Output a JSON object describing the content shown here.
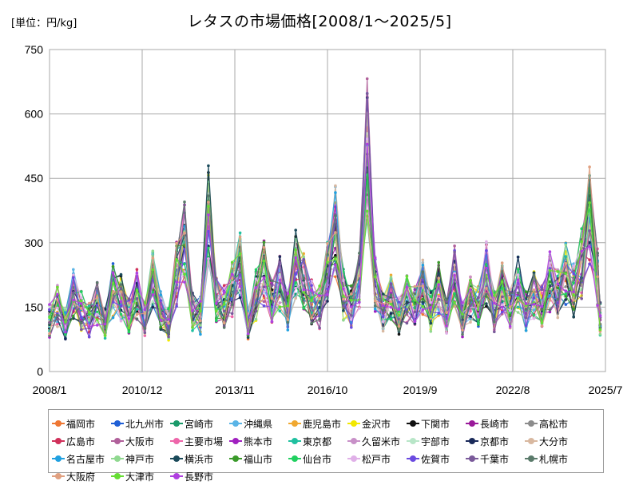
{
  "header": {
    "unit_label": "[単位：円/kg]",
    "title": "レタスの市場価格[2008/1～2025/5]"
  },
  "chart_data": {
    "type": "line",
    "title": "レタスの市場価格[2008/1～2025/5]",
    "unit": "[単位：円/kg]",
    "x_ticks": [
      "2008/1",
      "2010/12",
      "2013/11",
      "2016/10",
      "2019/9",
      "2022/8",
      "2025/7"
    ],
    "y_ticks": [
      0,
      150,
      300,
      450,
      600,
      750
    ],
    "ylim": [
      0,
      750
    ],
    "xlim": [
      "2008/1",
      "2025/7"
    ],
    "grid": true,
    "legend_position": "bottom",
    "reference_series": [
      {
        "x": "2008/1",
        "y": 120
      },
      {
        "x": "2008/4",
        "y": 150
      },
      {
        "x": "2008/7",
        "y": 110
      },
      {
        "x": "2008/10",
        "y": 180
      },
      {
        "x": "2009/1",
        "y": 140
      },
      {
        "x": "2009/4",
        "y": 120
      },
      {
        "x": "2009/7",
        "y": 160
      },
      {
        "x": "2009/10",
        "y": 110
      },
      {
        "x": "2010/1",
        "y": 190
      },
      {
        "x": "2010/4",
        "y": 170
      },
      {
        "x": "2010/7",
        "y": 130
      },
      {
        "x": "2010/10",
        "y": 180
      },
      {
        "x": "2011/1",
        "y": 120
      },
      {
        "x": "2011/4",
        "y": 220
      },
      {
        "x": "2011/7",
        "y": 140
      },
      {
        "x": "2011/10",
        "y": 110
      },
      {
        "x": "2012/1",
        "y": 230
      },
      {
        "x": "2012/4",
        "y": 300
      },
      {
        "x": "2012/7",
        "y": 140
      },
      {
        "x": "2012/10",
        "y": 130
      },
      {
        "x": "2013/1",
        "y": 360
      },
      {
        "x": "2013/4",
        "y": 170
      },
      {
        "x": "2013/7",
        "y": 150
      },
      {
        "x": "2013/10",
        "y": 190
      },
      {
        "x": "2014/1",
        "y": 250
      },
      {
        "x": "2014/4",
        "y": 110
      },
      {
        "x": "2014/7",
        "y": 180
      },
      {
        "x": "2014/10",
        "y": 230
      },
      {
        "x": "2015/1",
        "y": 160
      },
      {
        "x": "2015/4",
        "y": 210
      },
      {
        "x": "2015/7",
        "y": 140
      },
      {
        "x": "2015/10",
        "y": 250
      },
      {
        "x": "2016/1",
        "y": 210
      },
      {
        "x": "2016/4",
        "y": 160
      },
      {
        "x": "2016/7",
        "y": 150
      },
      {
        "x": "2016/10",
        "y": 230
      },
      {
        "x": "2017/1",
        "y": 330
      },
      {
        "x": "2017/4",
        "y": 180
      },
      {
        "x": "2017/7",
        "y": 150
      },
      {
        "x": "2017/10",
        "y": 210
      },
      {
        "x": "2018/1",
        "y": 520
      },
      {
        "x": "2018/4",
        "y": 200
      },
      {
        "x": "2018/7",
        "y": 140
      },
      {
        "x": "2018/10",
        "y": 170
      },
      {
        "x": "2019/1",
        "y": 130
      },
      {
        "x": "2019/4",
        "y": 170
      },
      {
        "x": "2019/7",
        "y": 150
      },
      {
        "x": "2019/10",
        "y": 200
      },
      {
        "x": "2020/1",
        "y": 140
      },
      {
        "x": "2020/4",
        "y": 190
      },
      {
        "x": "2020/7",
        "y": 130
      },
      {
        "x": "2020/10",
        "y": 220
      },
      {
        "x": "2021/1",
        "y": 120
      },
      {
        "x": "2021/4",
        "y": 170
      },
      {
        "x": "2021/7",
        "y": 150
      },
      {
        "x": "2021/10",
        "y": 230
      },
      {
        "x": "2022/1",
        "y": 140
      },
      {
        "x": "2022/4",
        "y": 190
      },
      {
        "x": "2022/7",
        "y": 150
      },
      {
        "x": "2022/10",
        "y": 200
      },
      {
        "x": "2023/1",
        "y": 140
      },
      {
        "x": "2023/4",
        "y": 180
      },
      {
        "x": "2023/7",
        "y": 150
      },
      {
        "x": "2023/10",
        "y": 210
      },
      {
        "x": "2024/1",
        "y": 180
      },
      {
        "x": "2024/4",
        "y": 230
      },
      {
        "x": "2024/7",
        "y": 190
      },
      {
        "x": "2024/10",
        "y": 250
      },
      {
        "x": "2025/1",
        "y": 360
      },
      {
        "x": "2025/4",
        "y": 220
      },
      {
        "x": "2025/5",
        "y": 120
      }
    ],
    "series": [
      {
        "name": "福岡市",
        "color": "#ee7733"
      },
      {
        "name": "北九州市",
        "color": "#1f5fd6"
      },
      {
        "name": "宮崎市",
        "color": "#1a9a6a"
      },
      {
        "name": "沖縄県",
        "color": "#5ab4e6"
      },
      {
        "name": "鹿児島市",
        "color": "#f0a830"
      },
      {
        "name": "金沢市",
        "color": "#f2e800"
      },
      {
        "name": "下関市",
        "color": "#111111"
      },
      {
        "name": "長崎市",
        "color": "#9a1a9a"
      },
      {
        "name": "高松市",
        "color": "#8c8c8c"
      },
      {
        "name": "広島市",
        "color": "#d0305a"
      },
      {
        "name": "大阪市",
        "color": "#b0609a"
      },
      {
        "name": "主要市場",
        "color": "#ee66aa"
      },
      {
        "name": "熊本市",
        "color": "#a020c0"
      },
      {
        "name": "東京都",
        "color": "#20c0a0"
      },
      {
        "name": "久留米市",
        "color": "#c890c8"
      },
      {
        "name": "宇部市",
        "color": "#b8e6c8"
      },
      {
        "name": "京都市",
        "color": "#1a2a5a"
      },
      {
        "name": "大分市",
        "color": "#d8b8a0"
      },
      {
        "name": "名古屋市",
        "color": "#20a0e0"
      },
      {
        "name": "神戸市",
        "color": "#90d890"
      },
      {
        "name": "横浜市",
        "color": "#1a4a5a"
      },
      {
        "name": "福山市",
        "color": "#3a9a2a"
      },
      {
        "name": "仙台市",
        "color": "#20d060"
      },
      {
        "name": "松戸市",
        "color": "#e0b0e8"
      },
      {
        "name": "佐賀市",
        "color": "#6a4ae0"
      },
      {
        "name": "千葉市",
        "color": "#7a5a9a"
      },
      {
        "name": "札幌市",
        "color": "#5a7a6a"
      },
      {
        "name": "大阪府",
        "color": "#e0a080"
      },
      {
        "name": "大津市",
        "color": "#66dd33"
      },
      {
        "name": "長野市",
        "color": "#b040e0"
      }
    ]
  }
}
